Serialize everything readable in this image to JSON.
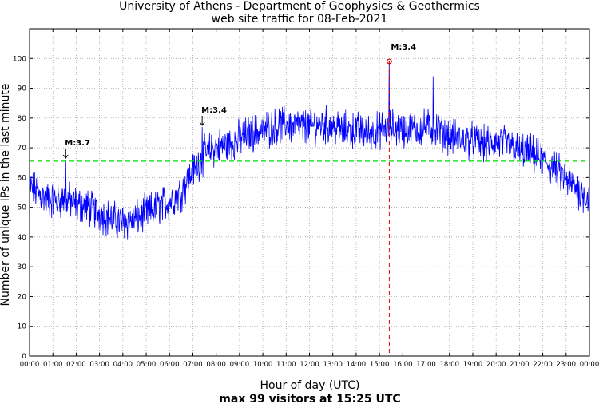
{
  "chart_data": {
    "type": "line",
    "title": "University of Athens - Department of Geophysics & Geothermics",
    "subtitle": "web site traffic for 08-Feb-2021",
    "xlabel": "Hour of day (UTC)",
    "ylabel": "Number of unique IPs in the last minute",
    "footer": "max 99 visitors at 15:25 UTC",
    "xlim": [
      "00:00",
      "24:00"
    ],
    "ylim": [
      0,
      110
    ],
    "x_ticks": [
      "00:00",
      "01:00",
      "02:00",
      "03:00",
      "04:00",
      "05:00",
      "06:00",
      "07:00",
      "08:00",
      "09:00",
      "10:00",
      "11:00",
      "12:00",
      "13:00",
      "14:00",
      "15:00",
      "16:00",
      "17:00",
      "18:00",
      "19:00",
      "20:00",
      "21:00",
      "22:00",
      "23:00",
      "00:00"
    ],
    "y_ticks": [
      0,
      10,
      20,
      30,
      40,
      50,
      60,
      70,
      80,
      90,
      100
    ],
    "grid": true,
    "series": [
      {
        "color": "#0000ff",
        "trend": [
          {
            "hour": 0.0,
            "value": 57
          },
          {
            "hour": 0.5,
            "value": 54
          },
          {
            "hour": 1.0,
            "value": 52
          },
          {
            "hour": 1.5,
            "value": 53
          },
          {
            "hour": 2.0,
            "value": 51
          },
          {
            "hour": 2.5,
            "value": 50
          },
          {
            "hour": 3.0,
            "value": 48
          },
          {
            "hour": 3.5,
            "value": 46
          },
          {
            "hour": 4.0,
            "value": 45
          },
          {
            "hour": 4.5,
            "value": 46
          },
          {
            "hour": 5.0,
            "value": 48
          },
          {
            "hour": 5.5,
            "value": 50
          },
          {
            "hour": 6.0,
            "value": 52
          },
          {
            "hour": 6.5,
            "value": 55
          },
          {
            "hour": 7.0,
            "value": 62
          },
          {
            "hour": 7.5,
            "value": 68
          },
          {
            "hour": 8.0,
            "value": 70
          },
          {
            "hour": 8.5,
            "value": 71
          },
          {
            "hour": 9.0,
            "value": 73
          },
          {
            "hour": 9.5,
            "value": 75
          },
          {
            "hour": 10.0,
            "value": 76
          },
          {
            "hour": 10.5,
            "value": 77
          },
          {
            "hour": 11.0,
            "value": 78
          },
          {
            "hour": 11.5,
            "value": 77
          },
          {
            "hour": 12.0,
            "value": 77
          },
          {
            "hour": 12.5,
            "value": 78
          },
          {
            "hour": 13.0,
            "value": 77
          },
          {
            "hour": 13.5,
            "value": 76
          },
          {
            "hour": 14.0,
            "value": 76
          },
          {
            "hour": 14.5,
            "value": 75
          },
          {
            "hour": 15.0,
            "value": 76
          },
          {
            "hour": 15.5,
            "value": 77
          },
          {
            "hour": 16.0,
            "value": 76
          },
          {
            "hour": 16.5,
            "value": 76
          },
          {
            "hour": 17.0,
            "value": 77
          },
          {
            "hour": 17.5,
            "value": 76
          },
          {
            "hour": 18.0,
            "value": 74
          },
          {
            "hour": 18.5,
            "value": 73
          },
          {
            "hour": 19.0,
            "value": 72
          },
          {
            "hour": 19.5,
            "value": 71
          },
          {
            "hour": 20.0,
            "value": 72
          },
          {
            "hour": 20.5,
            "value": 71
          },
          {
            "hour": 21.0,
            "value": 69
          },
          {
            "hour": 21.5,
            "value": 68
          },
          {
            "hour": 22.0,
            "value": 66
          },
          {
            "hour": 22.5,
            "value": 63
          },
          {
            "hour": 23.0,
            "value": 59
          },
          {
            "hour": 23.5,
            "value": 56
          },
          {
            "hour": 24.0,
            "value": 53
          }
        ],
        "noise_amplitude": 5,
        "spikes": [
          {
            "hour": 1.55,
            "value": 66
          },
          {
            "hour": 7.4,
            "value": 77
          },
          {
            "hour": 15.42,
            "value": 99
          },
          {
            "hour": 17.3,
            "value": 94
          }
        ]
      }
    ],
    "average_line": {
      "value": 65.5,
      "color": "#00dd00",
      "style": "dashed"
    },
    "max_marker": {
      "hour": 15.42,
      "value": 99,
      "line_color": "#e00000",
      "style": "dashed"
    },
    "annotations": [
      {
        "text": "M:3.7",
        "hour": 1.55,
        "value": 66
      },
      {
        "text": "M:3.4",
        "hour": 7.4,
        "value": 77
      },
      {
        "text": "M:3.4",
        "hour": 15.42,
        "value": 99
      }
    ]
  }
}
